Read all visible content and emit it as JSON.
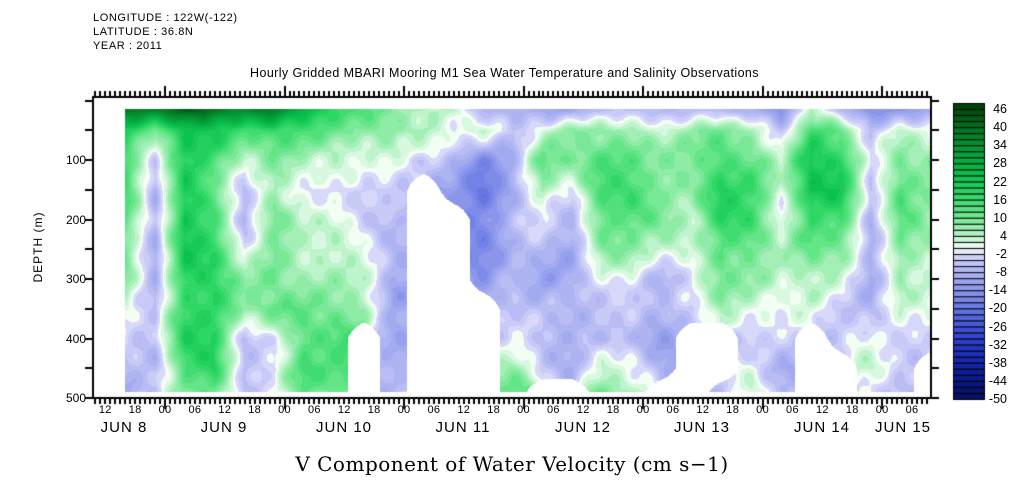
{
  "header": {
    "longitude": "LONGITUDE : 122W(-122)",
    "latitude": "LATITUDE : 36.8N",
    "year": "YEAR : 2011"
  },
  "title": "Hourly Gridded MBARI Mooring M1 Sea Water Temperature and Salinity Observations",
  "footer_label": "V Component of Water Velocity (cm s−1)",
  "chart_data": {
    "type": "heatmap",
    "title": "Hourly Gridded MBARI Mooring M1 Sea Water Temperature and Salinity Observations",
    "variable": "V Component of Water Velocity",
    "units": "cm s-1",
    "ylabel": "DEPTH (m)",
    "y_range_m": [
      0,
      500
    ],
    "depth_tick_labels": [
      "100",
      "200",
      "300",
      "400",
      "500"
    ],
    "hour_tick_labels": [
      "12",
      "18",
      "00",
      "06",
      "12",
      "18",
      "00",
      "06",
      "12",
      "18",
      "00",
      "06",
      "12",
      "18",
      "00",
      "06",
      "12",
      "18",
      "00",
      "06",
      "12",
      "18",
      "00",
      "06",
      "12",
      "18",
      "00",
      "06"
    ],
    "date_labels": [
      "JUN 8",
      "JUN 9",
      "JUN 10",
      "JUN 11",
      "JUN 12",
      "JUN 13",
      "JUN 14",
      "JUN 15"
    ],
    "colorbar": {
      "max": 48,
      "min": -50,
      "band_step": 2,
      "tick_labels": [
        "46",
        "40",
        "34",
        "28",
        "22",
        "16",
        "10",
        "4",
        "-2",
        "-8",
        "-14",
        "-20",
        "-26",
        "-32",
        "-38",
        "-44",
        "-50"
      ],
      "color_stops": [
        [
          48,
          "#013d01"
        ],
        [
          42,
          "#02641a"
        ],
        [
          36,
          "#038a2e"
        ],
        [
          30,
          "#06a83f"
        ],
        [
          24,
          "#0cc24f"
        ],
        [
          18,
          "#2fd765"
        ],
        [
          12,
          "#63e588"
        ],
        [
          6,
          "#a4efb6"
        ],
        [
          2,
          "#d9f8e0"
        ],
        [
          0,
          "#f2fdf4"
        ],
        [
          -2,
          "#d8d8fa"
        ],
        [
          -6,
          "#b9bdf4"
        ],
        [
          -12,
          "#97a0ee"
        ],
        [
          -18,
          "#7282e6"
        ],
        [
          -24,
          "#4d5edb"
        ],
        [
          -30,
          "#2f41cf"
        ],
        [
          -36,
          "#1a2bb4"
        ],
        [
          -42,
          "#0c1b92"
        ],
        [
          -50,
          "#03105e"
        ]
      ]
    },
    "missing_data_color": "#ffffff",
    "grid": {
      "time_start": "JUN 8 15:00",
      "time_step_hours": 6,
      "columns": 28,
      "depths_m": [
        15,
        50,
        100,
        150,
        200,
        250,
        300,
        350,
        400,
        450,
        490
      ],
      "values_by_depth_row": [
        [
          36,
          38,
          42,
          40,
          36,
          38,
          30,
          18,
          12,
          8,
          6,
          4,
          -6,
          -8,
          -8,
          -10,
          -8,
          -6,
          -4,
          -6,
          -6,
          -8,
          -16,
          6,
          -10,
          -16,
          -12,
          -8
        ],
        [
          20,
          12,
          24,
          22,
          14,
          20,
          16,
          12,
          8,
          10,
          8,
          -2,
          4,
          -4,
          4,
          8,
          8,
          6,
          4,
          6,
          10,
          6,
          -4,
          14,
          10,
          -6,
          4,
          0
        ],
        [
          16,
          -4,
          18,
          14,
          6,
          10,
          6,
          4,
          -2,
          2,
          -6,
          -8,
          -14,
          -8,
          12,
          10,
          12,
          12,
          10,
          8,
          18,
          14,
          2,
          22,
          18,
          -4,
          12,
          8
        ],
        [
          14,
          -8,
          20,
          12,
          -6,
          6,
          2,
          -2,
          -6,
          -4,
          null,
          -12,
          -18,
          -10,
          8,
          -2,
          14,
          16,
          12,
          8,
          22,
          18,
          0,
          24,
          20,
          -6,
          16,
          10
        ],
        [
          12,
          -10,
          22,
          16,
          -8,
          8,
          4,
          2,
          -4,
          -8,
          null,
          null,
          -16,
          -8,
          -2,
          -6,
          12,
          14,
          10,
          6,
          20,
          16,
          -2,
          20,
          16,
          -8,
          14,
          8
        ],
        [
          10,
          -10,
          20,
          18,
          2,
          10,
          6,
          4,
          -2,
          -8,
          null,
          null,
          -14,
          -8,
          -8,
          -10,
          6,
          8,
          4,
          2,
          16,
          12,
          2,
          12,
          8,
          -10,
          12,
          6
        ],
        [
          8,
          -8,
          18,
          20,
          8,
          12,
          8,
          6,
          2,
          -8,
          null,
          null,
          -12,
          -6,
          -10,
          -10,
          -2,
          0,
          -6,
          -2,
          12,
          8,
          2,
          4,
          0,
          -10,
          8,
          2
        ],
        [
          4,
          -4,
          16,
          18,
          10,
          14,
          12,
          10,
          6,
          -10,
          null,
          null,
          null,
          -4,
          -8,
          -8,
          -6,
          -4,
          -8,
          -6,
          8,
          2,
          -2,
          0,
          -4,
          -8,
          4,
          0
        ],
        [
          -4,
          -6,
          18,
          20,
          -4,
          -2,
          16,
          14,
          null,
          -10,
          null,
          null,
          null,
          -2,
          -6,
          -8,
          -10,
          -6,
          -10,
          null,
          null,
          -4,
          -6,
          null,
          -6,
          0,
          0,
          -2
        ],
        [
          -8,
          -8,
          14,
          18,
          -6,
          -4,
          18,
          16,
          null,
          -10,
          null,
          null,
          null,
          8,
          -4,
          -6,
          4,
          -2,
          -8,
          null,
          null,
          2,
          -10,
          null,
          null,
          2,
          -4,
          null
        ],
        [
          -8,
          -6,
          10,
          12,
          -4,
          -2,
          12,
          10,
          null,
          -8,
          null,
          null,
          null,
          12,
          null,
          null,
          10,
          4,
          null,
          null,
          -4,
          4,
          -8,
          null,
          null,
          -2,
          -6,
          null
        ]
      ]
    }
  }
}
